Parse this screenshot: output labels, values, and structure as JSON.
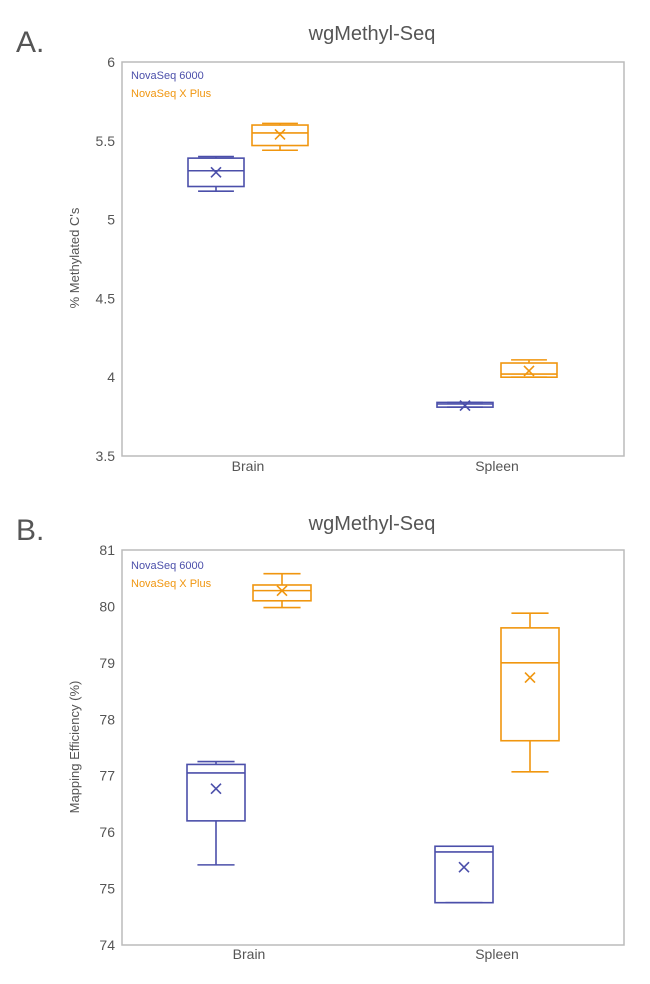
{
  "colors": {
    "series_a": "#4b4faa",
    "series_b": "#f0960f",
    "axis": "#bbbbbb",
    "text": "#555555"
  },
  "chart_data": [
    {
      "panel_label": "A.",
      "type": "box",
      "title": "wgMethyl-Seq",
      "xlabel": "",
      "ylabel": "% Methylated C's",
      "ylim": [
        3.5,
        6
      ],
      "yticks": [
        "3.5",
        "4",
        "4.5",
        "5",
        "5.5",
        "6"
      ],
      "categories": [
        "Brain",
        "Spleen"
      ],
      "legend_position": "top-left",
      "series": [
        {
          "name": "NovaSeq 6000",
          "color": "#4b4faa",
          "boxes": [
            {
              "min": 5.18,
              "q1": 5.21,
              "median": 5.31,
              "q3": 5.39,
              "max": 5.4,
              "mean": 5.3
            },
            {
              "min": 3.81,
              "q1": 3.81,
              "median": 3.83,
              "q3": 3.84,
              "max": 3.84,
              "mean": 3.82
            }
          ]
        },
        {
          "name": "NovaSeq X Plus",
          "color": "#f0960f",
          "boxes": [
            {
              "min": 5.44,
              "q1": 5.47,
              "median": 5.55,
              "q3": 5.6,
              "max": 5.61,
              "mean": 5.54
            },
            {
              "min": 4.0,
              "q1": 4.0,
              "median": 4.02,
              "q3": 4.09,
              "max": 4.11,
              "mean": 4.04
            }
          ]
        }
      ]
    },
    {
      "panel_label": "B.",
      "type": "box",
      "title": "wgMethyl-Seq",
      "xlabel": "",
      "ylabel": "Mapping Efficiency (%)",
      "ylim": [
        74,
        81
      ],
      "yticks": [
        "74",
        "75",
        "76",
        "77",
        "78",
        "79",
        "80",
        "81"
      ],
      "categories": [
        "Brain",
        "Spleen"
      ],
      "legend_position": "top-left",
      "series": [
        {
          "name": "NovaSeq 6000",
          "color": "#4b4faa",
          "boxes": [
            {
              "min": 75.42,
              "q1": 76.2,
              "median": 77.05,
              "q3": 77.2,
              "max": 77.25,
              "mean": 76.77
            },
            {
              "min": 74.75,
              "q1": 74.75,
              "median": 75.65,
              "q3": 75.75,
              "max": 75.75,
              "mean": 75.38
            }
          ]
        },
        {
          "name": "NovaSeq X Plus",
          "color": "#f0960f",
          "boxes": [
            {
              "min": 79.98,
              "q1": 80.1,
              "median": 80.28,
              "q3": 80.38,
              "max": 80.58,
              "mean": 80.28
            },
            {
              "min": 77.07,
              "q1": 77.62,
              "median": 79.0,
              "q3": 79.62,
              "max": 79.88,
              "mean": 78.74
            }
          ]
        }
      ]
    }
  ]
}
